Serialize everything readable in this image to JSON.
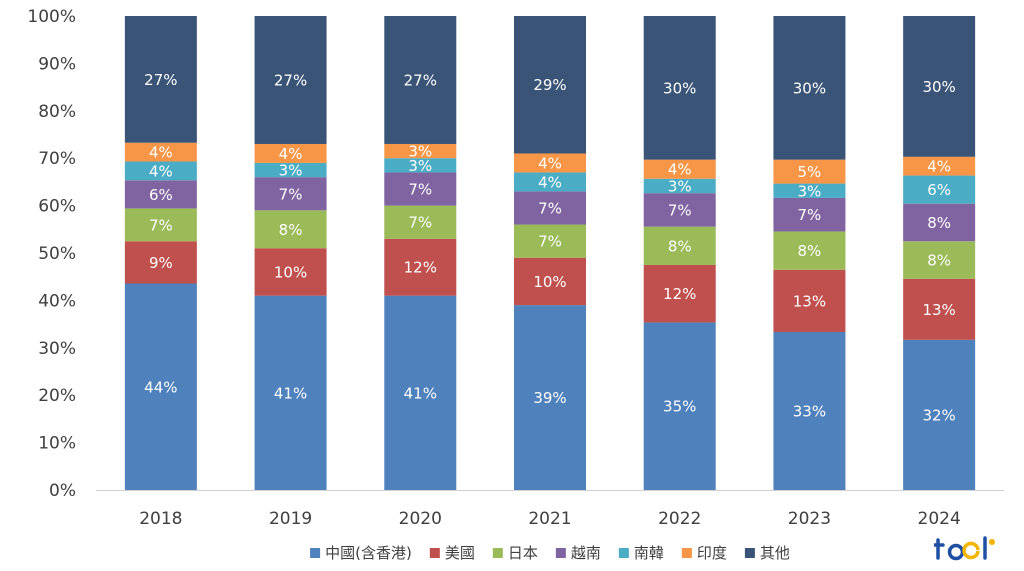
{
  "chart_data": {
    "type": "bar",
    "stacked": true,
    "categories": [
      "2018",
      "2019",
      "2020",
      "2021",
      "2022",
      "2023",
      "2024"
    ],
    "series": [
      {
        "name": "中國(含香港)",
        "color": "#4f81bd",
        "values": [
          44,
          41,
          41,
          39,
          35,
          33,
          32
        ],
        "labels": [
          "44%",
          "41%",
          "41%",
          "39%",
          "35%",
          "33%",
          "32%"
        ]
      },
      {
        "name": "美國",
        "color": "#c0504d",
        "values": [
          9,
          10,
          12,
          10,
          12,
          13,
          13
        ],
        "labels": [
          "9%",
          "10%",
          "12%",
          "10%",
          "12%",
          "13%",
          "13%"
        ]
      },
      {
        "name": "日本",
        "color": "#9bbb59",
        "values": [
          7,
          8,
          7,
          7,
          8,
          8,
          8
        ],
        "labels": [
          "7%",
          "8%",
          "7%",
          "7%",
          "8%",
          "8%",
          "8%"
        ]
      },
      {
        "name": "越南",
        "color": "#8064a2",
        "values": [
          6,
          7,
          7,
          7,
          7,
          7,
          8
        ],
        "labels": [
          "6%",
          "7%",
          "7%",
          "7%",
          "7%",
          "7%",
          "8%"
        ]
      },
      {
        "name": "南韓",
        "color": "#4bacc6",
        "values": [
          4,
          3,
          3,
          4,
          3,
          3,
          6
        ],
        "labels": [
          "4%",
          "3%",
          "3%",
          "4%",
          "3%",
          "3%",
          "6%"
        ]
      },
      {
        "name": "印度",
        "color": "#f79646",
        "values": [
          4,
          4,
          3,
          4,
          4,
          5,
          4
        ],
        "labels": [
          "4%",
          "4%",
          "3%",
          "4%",
          "4%",
          "5%",
          "4%"
        ]
      },
      {
        "name": "其他",
        "color": "#3a5478",
        "values": [
          27,
          27,
          27,
          29,
          30,
          30,
          30
        ],
        "labels": [
          "27%",
          "27%",
          "27%",
          "29%",
          "30%",
          "30%",
          "30%"
        ]
      }
    ],
    "ylim": [
      0,
      100
    ],
    "yticks": [
      "0%",
      "10%",
      "20%",
      "30%",
      "40%",
      "50%",
      "60%",
      "70%",
      "80%",
      "90%",
      "100%"
    ],
    "grid": false,
    "legend_position": "bottom"
  }
}
